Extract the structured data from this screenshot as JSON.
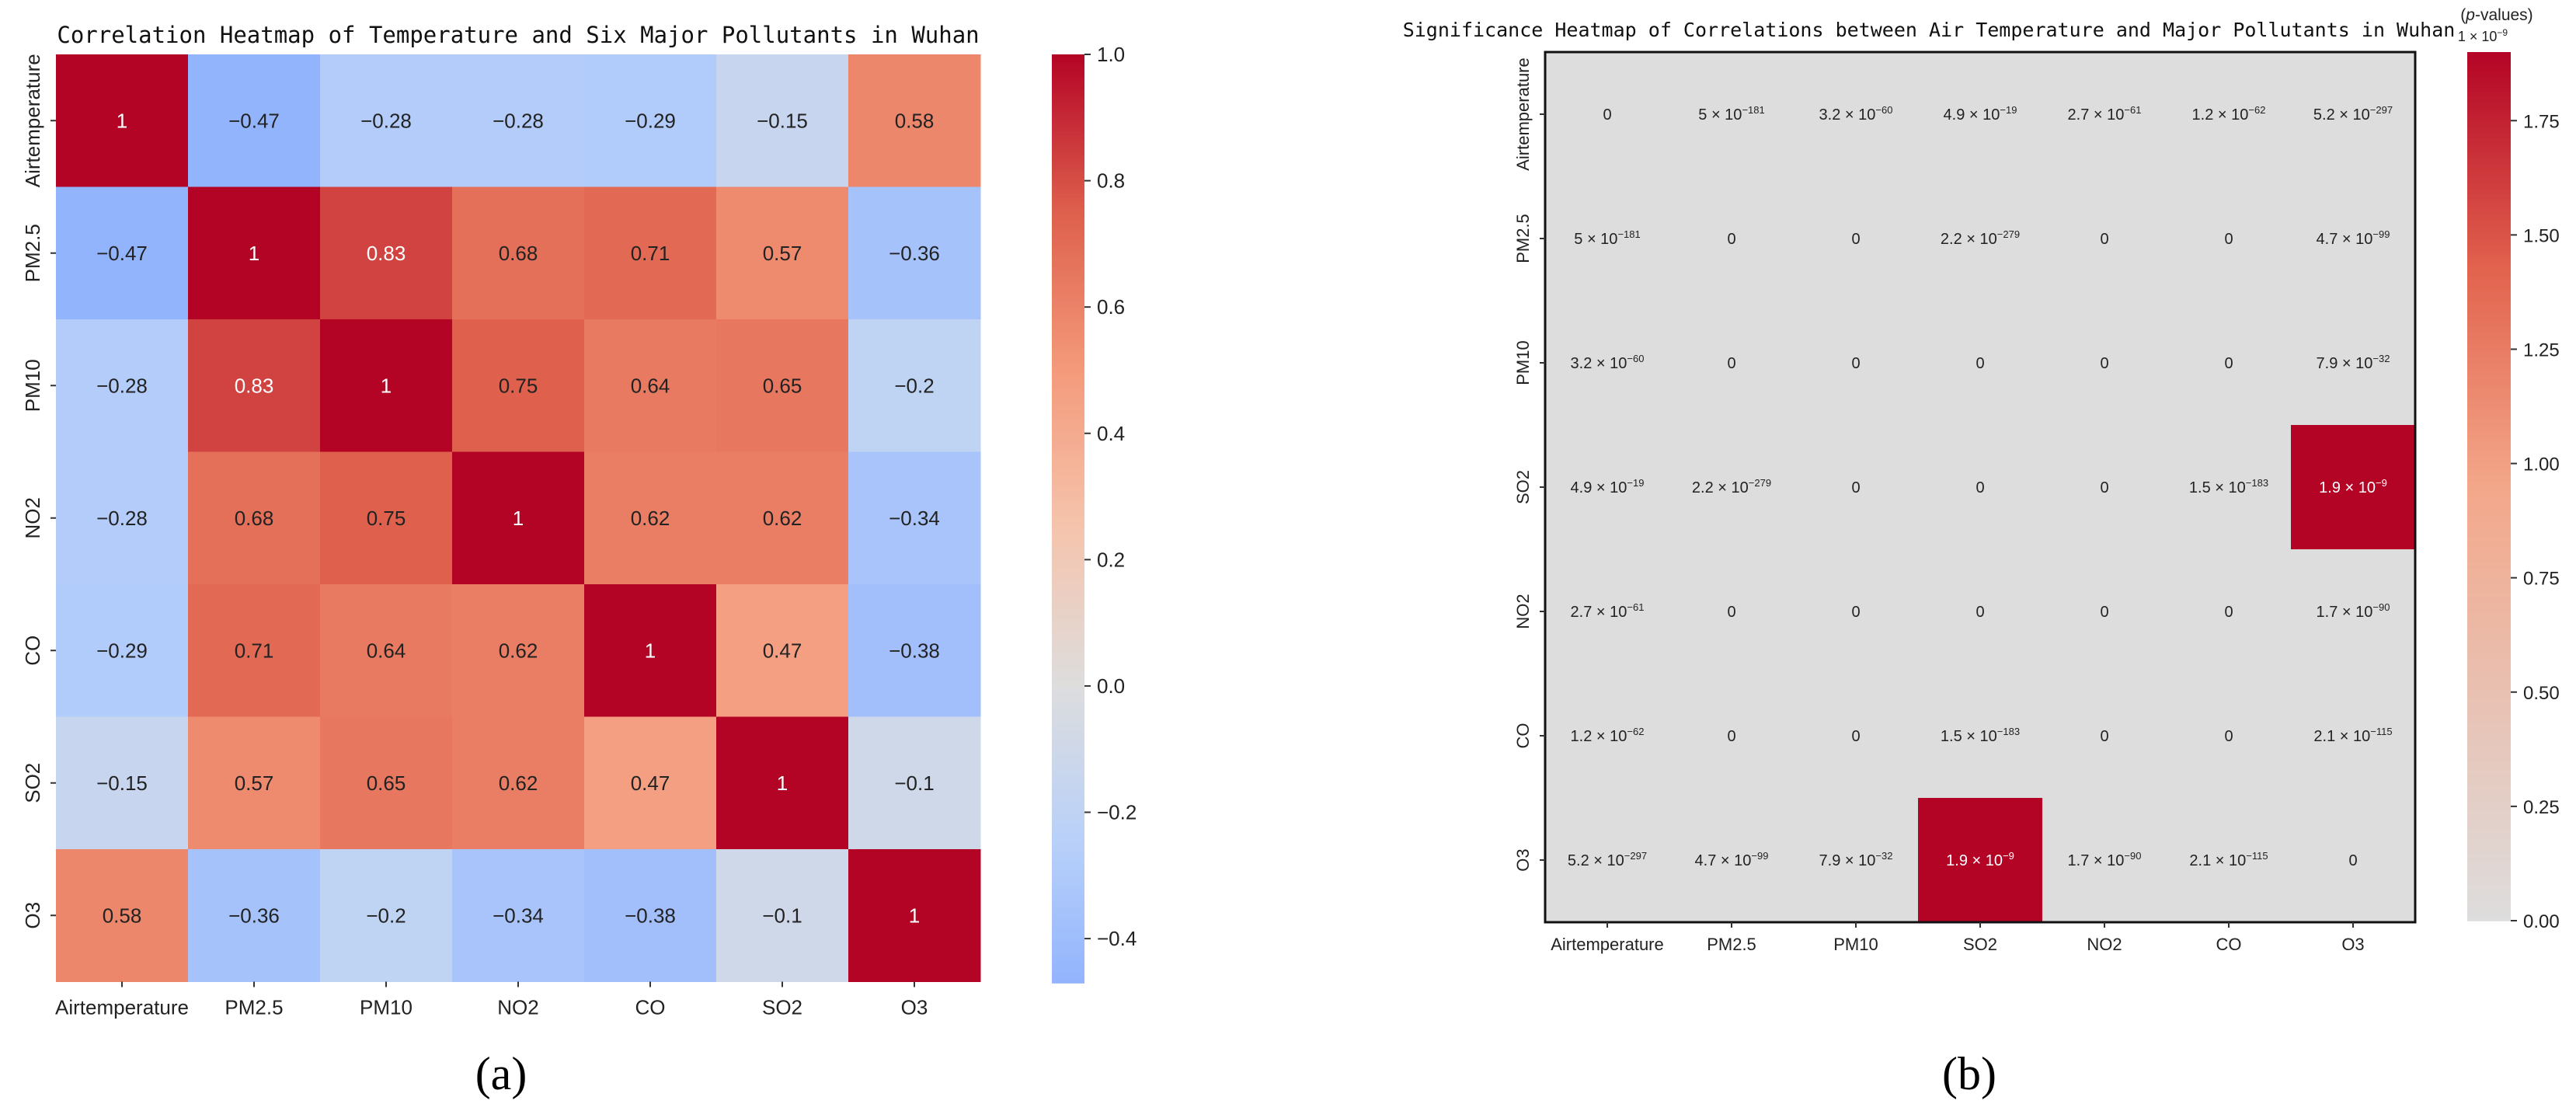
{
  "chart_data": [
    {
      "type": "heatmap",
      "panel_label": "(a)",
      "title": "Correlation Heatmap of Temperature and Six Major Pollutants in Wuhan",
      "x_labels": [
        "Airtemperature",
        "PM2.5",
        "PM10",
        "NO2",
        "CO",
        "SO2",
        "O3"
      ],
      "y_labels": [
        "Airtemperature",
        "PM2.5",
        "PM10",
        "NO2",
        "CO",
        "SO2",
        "O3"
      ],
      "values": [
        [
          1,
          -0.47,
          -0.28,
          -0.28,
          -0.29,
          -0.15,
          0.58
        ],
        [
          -0.47,
          1,
          0.83,
          0.68,
          0.71,
          0.57,
          -0.36
        ],
        [
          -0.28,
          0.83,
          1,
          0.75,
          0.64,
          0.65,
          -0.2
        ],
        [
          -0.28,
          0.68,
          0.75,
          1,
          0.62,
          0.62,
          -0.34
        ],
        [
          -0.29,
          0.71,
          0.64,
          0.62,
          1,
          0.47,
          -0.38
        ],
        [
          -0.15,
          0.57,
          0.65,
          0.62,
          0.47,
          1,
          -0.1
        ],
        [
          0.58,
          -0.36,
          -0.2,
          -0.34,
          -0.38,
          -0.1,
          1
        ]
      ],
      "annotations": [
        [
          "1",
          "−0.47",
          "−0.28",
          "−0.28",
          "−0.29",
          "−0.15",
          "0.58"
        ],
        [
          "−0.47",
          "1",
          "0.83",
          "0.68",
          "0.71",
          "0.57",
          "−0.36"
        ],
        [
          "−0.28",
          "0.83",
          "1",
          "0.75",
          "0.64",
          "0.65",
          "−0.2"
        ],
        [
          "−0.28",
          "0.68",
          "0.75",
          "1",
          "0.62",
          "0.62",
          "−0.34"
        ],
        [
          "−0.29",
          "0.71",
          "0.64",
          "0.62",
          "1",
          "0.47",
          "−0.38"
        ],
        [
          "−0.15",
          "0.57",
          "0.65",
          "0.62",
          "0.47",
          "1",
          "−0.1"
        ],
        [
          "0.58",
          "−0.36",
          "−0.2",
          "−0.34",
          "−0.38",
          "−0.1",
          "1"
        ]
      ],
      "colormap": "coolwarm",
      "color_range": [
        -0.47,
        1.0
      ],
      "colorbar": {
        "ticks": [
          1.0,
          0.8,
          0.6,
          0.4,
          0.2,
          0.0,
          -0.2,
          -0.4
        ],
        "tick_labels": [
          "1.0",
          "0.8",
          "0.6",
          "0.4",
          "0.2",
          "0.0",
          "−0.2",
          "−0.4"
        ]
      }
    },
    {
      "type": "heatmap",
      "panel_label": "(b)",
      "title": "Significance Heatmap of Correlations between Air Temperature and Major Pollutants in Wuhan",
      "x_labels": [
        "Airtemperature",
        "PM2.5",
        "PM10",
        "SO2",
        "NO2",
        "CO",
        "O3"
      ],
      "y_labels": [
        "Airtemperature",
        "PM2.5",
        "PM10",
        "SO2",
        "NO2",
        "CO",
        "O3"
      ],
      "values_scaled_1e-9": [
        [
          0,
          0,
          0,
          0,
          0,
          0,
          0
        ],
        [
          0,
          0,
          0,
          0,
          0,
          0,
          0
        ],
        [
          0,
          0,
          0,
          0,
          0,
          0,
          0
        ],
        [
          0,
          0,
          0,
          0,
          0,
          0,
          1.9
        ],
        [
          0,
          0,
          0,
          0,
          0,
          0,
          0
        ],
        [
          0,
          0,
          0,
          0,
          0,
          0,
          0
        ],
        [
          0,
          0,
          0,
          1.9,
          0,
          0,
          0
        ]
      ],
      "annotations": [
        [
          {
            "m": "0"
          },
          {
            "m": "5",
            "e": "−181"
          },
          {
            "m": "3.2",
            "e": "−60"
          },
          {
            "m": "4.9",
            "e": "−19"
          },
          {
            "m": "2.7",
            "e": "−61"
          },
          {
            "m": "1.2",
            "e": "−62"
          },
          {
            "m": "5.2",
            "e": "−297"
          }
        ],
        [
          {
            "m": "5",
            "e": "−181"
          },
          {
            "m": "0"
          },
          {
            "m": "0"
          },
          {
            "m": "2.2",
            "e": "−279"
          },
          {
            "m": "0"
          },
          {
            "m": "0"
          },
          {
            "m": "4.7",
            "e": "−99"
          }
        ],
        [
          {
            "m": "3.2",
            "e": "−60"
          },
          {
            "m": "0"
          },
          {
            "m": "0"
          },
          {
            "m": "0"
          },
          {
            "m": "0"
          },
          {
            "m": "0"
          },
          {
            "m": "7.9",
            "e": "−32"
          }
        ],
        [
          {
            "m": "4.9",
            "e": "−19"
          },
          {
            "m": "2.2",
            "e": "−279"
          },
          {
            "m": "0"
          },
          {
            "m": "0"
          },
          {
            "m": "0"
          },
          {
            "m": "1.5",
            "e": "−183"
          },
          {
            "m": "1.9",
            "e": "−9"
          }
        ],
        [
          {
            "m": "2.7",
            "e": "−61"
          },
          {
            "m": "0"
          },
          {
            "m": "0"
          },
          {
            "m": "0"
          },
          {
            "m": "0"
          },
          {
            "m": "0"
          },
          {
            "m": "1.7",
            "e": "−90"
          }
        ],
        [
          {
            "m": "1.2",
            "e": "−62"
          },
          {
            "m": "0"
          },
          {
            "m": "0"
          },
          {
            "m": "1.5",
            "e": "−183"
          },
          {
            "m": "0"
          },
          {
            "m": "0"
          },
          {
            "m": "2.1",
            "e": "−115"
          }
        ],
        [
          {
            "m": "5.2",
            "e": "−297"
          },
          {
            "m": "4.7",
            "e": "−99"
          },
          {
            "m": "7.9",
            "e": "−32"
          },
          {
            "m": "1.9",
            "e": "−9"
          },
          {
            "m": "1.7",
            "e": "−90"
          },
          {
            "m": "2.1",
            "e": "−115"
          },
          {
            "m": "0"
          }
        ]
      ],
      "color_range": [
        0,
        1.9
      ],
      "colorbar": {
        "label": "p",
        "label_suffix": "-values",
        "offset_text": "1 × 10",
        "offset_exp": "−9",
        "ticks": [
          1.75,
          1.5,
          1.25,
          1.0,
          0.75,
          0.5,
          0.25,
          0.0
        ],
        "tick_labels": [
          "1.75",
          "1.50",
          "1.25",
          "1.00",
          "0.75",
          "0.50",
          "0.25",
          "0.00"
        ]
      }
    }
  ]
}
